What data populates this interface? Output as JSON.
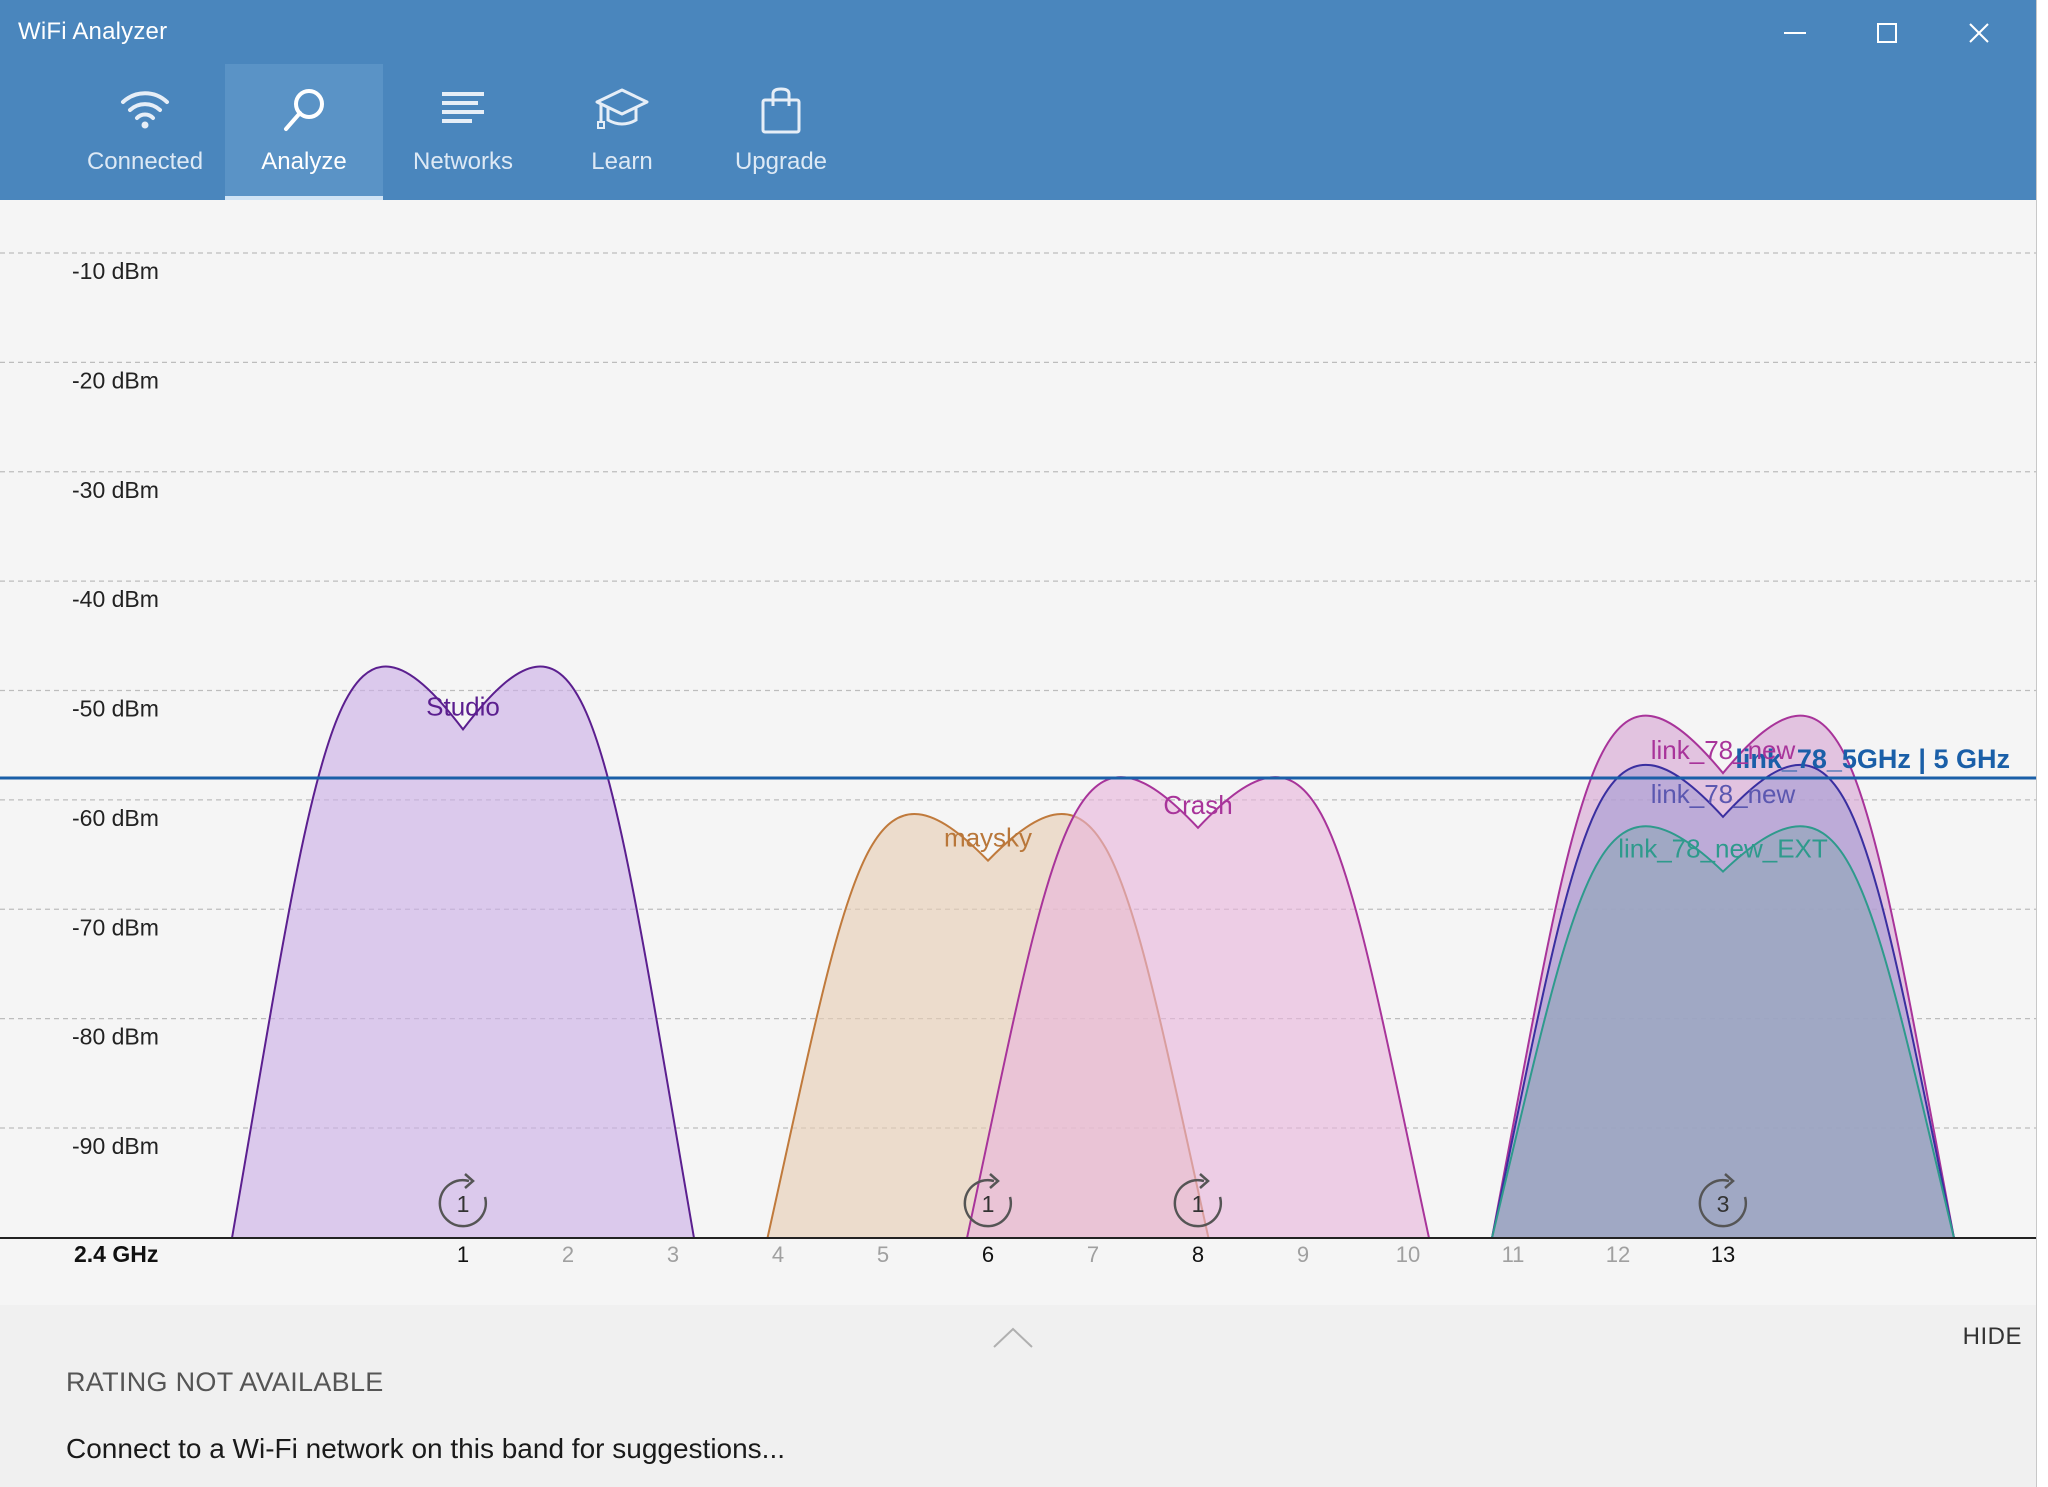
{
  "window": {
    "title": "WiFi Analyzer",
    "controls": [
      "minimize-icon",
      "maximize-icon",
      "close-icon"
    ]
  },
  "tabs": [
    {
      "label": "Connected",
      "icon": "wifi-icon",
      "active": false
    },
    {
      "label": "Analyze",
      "icon": "magnifier-icon",
      "active": true
    },
    {
      "label": "Networks",
      "icon": "list-icon",
      "active": false
    },
    {
      "label": "Learn",
      "icon": "graduation-cap-icon",
      "active": false
    },
    {
      "label": "Upgrade",
      "icon": "shopping-bag-icon",
      "active": false
    }
  ],
  "colors": {
    "header_bg": "#4a86bd",
    "connected_line": "#1a5fa8"
  },
  "chart_data": {
    "type": "area",
    "band_label": "2.4 GHz",
    "channels": [
      1,
      2,
      3,
      4,
      5,
      6,
      7,
      8,
      9,
      10,
      11,
      12,
      13
    ],
    "major_channels": [
      1,
      6,
      8,
      13
    ],
    "y_ticks": [
      "-10 dBm",
      "-20 dBm",
      "-30 dBm",
      "-40 dBm",
      "-50 dBm",
      "-60 dBm",
      "-70 dBm",
      "-80 dBm",
      "-90 dBm"
    ],
    "y_tick_values": [
      -10,
      -20,
      -30,
      -40,
      -50,
      -60,
      -70,
      -80,
      -90
    ],
    "ylim": [
      -99,
      -5
    ],
    "grid": true,
    "series": [
      {
        "name": "Studio",
        "channel": 1,
        "width": 4.4,
        "dbm": -52,
        "color": "#5b1f8f",
        "fill": "#cbaee6",
        "label_color": "#5b1f8f"
      },
      {
        "name": "maysky",
        "channel": 6,
        "width": 4.2,
        "dbm": -64,
        "color": "#c07a3c",
        "fill": "#e7cdb3",
        "label_color": "#b9773a"
      },
      {
        "name": "Crash",
        "channel": 8,
        "width": 4.4,
        "dbm": -61,
        "color": "#a8349a",
        "fill": "#e8b4dc",
        "label_color": "#a8349a"
      },
      {
        "name": "link_78_new",
        "channel": 13,
        "width": 4.4,
        "dbm": -56,
        "color": "#a8349a",
        "fill": "#d6a5d3",
        "label_color": "#a8349a"
      },
      {
        "name": "link_78_new",
        "channel": 13,
        "width": 4.4,
        "dbm": -60,
        "color": "#3a2fa0",
        "fill": "#a79cd3",
        "label_color": "#5b57b0"
      },
      {
        "name": "link_78_new_EXT",
        "channel": 13,
        "width": 4.4,
        "dbm": -65,
        "color": "#2e9a8c",
        "fill": "#8ea6b8",
        "label_color": "#2e9a8c"
      }
    ],
    "channel_badges": [
      {
        "channel": 1,
        "count": "1"
      },
      {
        "channel": 6,
        "count": "1"
      },
      {
        "channel": 8,
        "count": "1"
      },
      {
        "channel": 13,
        "count": "3"
      }
    ],
    "connected_network": {
      "label": "link_78_5GHz | 5 GHz",
      "dbm": -58
    }
  },
  "bottom": {
    "rating": "RATING NOT AVAILABLE",
    "suggestion": "Connect to a Wi-Fi network on this band for suggestions...",
    "hide_label": "HIDE"
  }
}
